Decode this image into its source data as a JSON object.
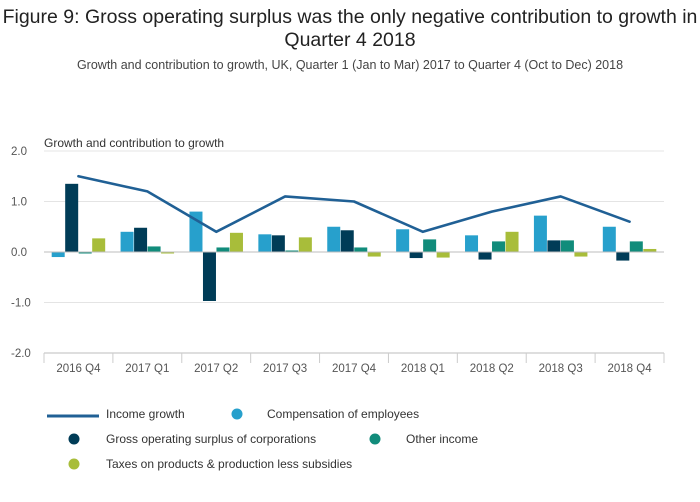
{
  "chart_data": {
    "type": "bar",
    "title": "Figure 9: Gross operating surplus was the only negative contribution to growth in Quarter 4 2018",
    "subtitle": "Growth and contribution to growth, UK, Quarter 1 (Jan to Mar) 2017 to Quarter 4 (Oct to Dec) 2018",
    "ylabel": "Growth and contribution to growth",
    "xlabel": "",
    "ylim": [
      -2.0,
      2.0
    ],
    "yticks": [
      2.0,
      1.0,
      0.0,
      -1.0,
      -2.0
    ],
    "ytick_labels": [
      "2.0",
      "1.0",
      "0.0",
      "-1.0",
      "-2.0"
    ],
    "grid": true,
    "legend_position": "bottom",
    "categories": [
      "2016 Q4",
      "2017 Q1",
      "2017 Q2",
      "2017 Q3",
      "2017 Q4",
      "2018 Q1",
      "2018 Q2",
      "2018 Q3",
      "2018 Q4"
    ],
    "line_series": {
      "name": "Income growth",
      "color": "#206095",
      "values": [
        1.5,
        1.2,
        0.4,
        1.1,
        1.0,
        0.4,
        0.8,
        1.1,
        0.6
      ]
    },
    "series": [
      {
        "name": "Compensation of employees",
        "color": "#27a0cc",
        "values": [
          -0.1,
          0.4,
          0.8,
          0.35,
          0.5,
          0.45,
          0.33,
          0.72,
          0.5
        ]
      },
      {
        "name": "Gross operating surplus of corporations",
        "color": "#003c57",
        "values": [
          1.35,
          0.48,
          -0.97,
          0.33,
          0.43,
          -0.12,
          -0.15,
          0.23,
          -0.17
        ]
      },
      {
        "name": "Other income",
        "color": "#118c7b",
        "values": [
          -0.03,
          0.11,
          0.09,
          0.03,
          0.09,
          0.25,
          0.21,
          0.23,
          0.21
        ]
      },
      {
        "name": "Taxes on products & production less subsidies",
        "color": "#a8bd3a",
        "values": [
          0.27,
          -0.03,
          0.38,
          0.29,
          -0.09,
          -0.11,
          0.4,
          -0.09,
          0.06
        ]
      }
    ]
  }
}
